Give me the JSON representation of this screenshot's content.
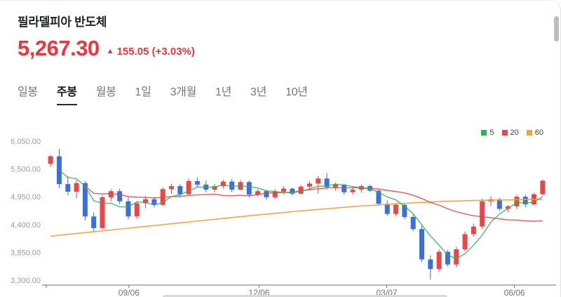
{
  "header": {
    "title": "필라델피아 반도체",
    "price": "5,267.30",
    "change_arrow": "▲",
    "change_text": "155.05 (+3.03%)"
  },
  "colors": {
    "price_up_accent": "#ef3341",
    "tab_active": "#121212",
    "tab_inactive": "#767676"
  },
  "tabs": {
    "items": [
      {
        "id": "daily",
        "label": "일봉",
        "active": false
      },
      {
        "id": "weekly",
        "label": "주봉",
        "active": true
      },
      {
        "id": "monthly",
        "label": "월봉",
        "active": false
      },
      {
        "id": "1day",
        "label": "1일",
        "active": false
      },
      {
        "id": "3months",
        "label": "3개월",
        "active": false
      },
      {
        "id": "1year",
        "label": "1년",
        "active": false
      },
      {
        "id": "3years",
        "label": "3년",
        "active": false
      },
      {
        "id": "10years",
        "label": "10년",
        "active": false
      }
    ]
  },
  "chart_data": {
    "type": "candlestick",
    "period": "weekly",
    "up_color": "#eb4547",
    "down_color": "#3b6fd9",
    "legend": [
      {
        "id": "ma5",
        "label": "5",
        "color": "#2faf5a"
      },
      {
        "id": "ma20",
        "label": "20",
        "color": "#eb4547"
      },
      {
        "id": "ma60",
        "label": "60",
        "color": "#f2a13a"
      }
    ],
    "y_axis": {
      "min": 3300,
      "max": 6050,
      "ticks": [
        {
          "label": "6,050.00",
          "value": 6050
        },
        {
          "label": "5,500.00",
          "value": 5500
        },
        {
          "label": "4,950.00",
          "value": 4950
        },
        {
          "label": "4,400.00",
          "value": 4400
        },
        {
          "label": "3,850.00",
          "value": 3850
        },
        {
          "label": "3,300.00",
          "value": 3300
        }
      ]
    },
    "x_axis": {
      "ticks": [
        {
          "label": "09/06",
          "t": 0.165
        },
        {
          "label": "12/06",
          "t": 0.425
        },
        {
          "label": "03/07",
          "t": 0.68
        },
        {
          "label": "06/06",
          "t": 0.935
        }
      ]
    },
    "candles": [
      [
        5600,
        5780,
        5540,
        5750
      ],
      [
        5750,
        5900,
        5120,
        5200
      ],
      [
        5200,
        5350,
        4980,
        5050
      ],
      [
        5050,
        5280,
        4920,
        5220
      ],
      [
        5220,
        5260,
        4480,
        4560
      ],
      [
        4560,
        4640,
        4260,
        4330
      ],
      [
        4330,
        4980,
        4300,
        4940
      ],
      [
        4940,
        5100,
        4860,
        5060
      ],
      [
        5060,
        5110,
        4800,
        4860
      ],
      [
        4860,
        4940,
        4500,
        4560
      ],
      [
        4560,
        4860,
        4510,
        4820
      ],
      [
        4820,
        4960,
        4720,
        4900
      ],
      [
        4900,
        4950,
        4740,
        4790
      ],
      [
        4790,
        5140,
        4770,
        5100
      ],
      [
        5100,
        5210,
        5010,
        5160
      ],
      [
        5160,
        5200,
        4940,
        5000
      ],
      [
        5000,
        5310,
        4980,
        5260
      ],
      [
        5260,
        5330,
        5140,
        5190
      ],
      [
        5190,
        5270,
        5040,
        5090
      ],
      [
        5090,
        5200,
        5040,
        5160
      ],
      [
        5160,
        5290,
        5110,
        5250
      ],
      [
        5250,
        5300,
        5040,
        5090
      ],
      [
        5090,
        5280,
        5070,
        5240
      ],
      [
        5240,
        5270,
        4940,
        4990
      ],
      [
        4990,
        5110,
        4950,
        5060
      ],
      [
        5060,
        5090,
        4890,
        4940
      ],
      [
        4940,
        5100,
        4910,
        5050
      ],
      [
        5050,
        5160,
        5000,
        5110
      ],
      [
        5110,
        5130,
        4970,
        5010
      ],
      [
        5010,
        5180,
        4990,
        5150
      ],
      [
        5150,
        5260,
        5090,
        5210
      ],
      [
        5210,
        5360,
        5010,
        5310
      ],
      [
        5310,
        5420,
        5090,
        5140
      ],
      [
        5140,
        5230,
        5070,
        5190
      ],
      [
        5190,
        5210,
        4990,
        5040
      ],
      [
        5040,
        5130,
        4990,
        5090
      ],
      [
        5090,
        5190,
        5030,
        5160
      ],
      [
        5160,
        5190,
        5040,
        5070
      ],
      [
        5070,
        5100,
        4770,
        4810
      ],
      [
        4810,
        4880,
        4570,
        4610
      ],
      [
        4610,
        4830,
        4570,
        4790
      ],
      [
        4790,
        4810,
        4510,
        4550
      ],
      [
        4550,
        4600,
        4270,
        4310
      ],
      [
        4310,
        4380,
        3660,
        3710
      ],
      [
        3710,
        3790,
        3310,
        3520
      ],
      [
        3520,
        3910,
        3460,
        3860
      ],
      [
        3860,
        3900,
        3570,
        3610
      ],
      [
        3610,
        3960,
        3550,
        3910
      ],
      [
        3910,
        4260,
        3870,
        4210
      ],
      [
        4210,
        4420,
        4160,
        4360
      ],
      [
        4360,
        4910,
        4310,
        4860
      ],
      [
        4860,
        4960,
        4760,
        4900
      ],
      [
        4900,
        4930,
        4670,
        4710
      ],
      [
        4710,
        4790,
        4640,
        4760
      ],
      [
        4760,
        4990,
        4700,
        4950
      ],
      [
        4950,
        4990,
        4740,
        4800
      ],
      [
        4800,
        5030,
        4780,
        5000
      ],
      [
        5000,
        5290,
        4980,
        5267
      ]
    ],
    "ma60_control_points": [
      {
        "t": 0.0,
        "v": 4170
      },
      {
        "t": 0.08,
        "v": 4250
      },
      {
        "t": 0.18,
        "v": 4350
      },
      {
        "t": 0.3,
        "v": 4470
      },
      {
        "t": 0.42,
        "v": 4590
      },
      {
        "t": 0.52,
        "v": 4680
      },
      {
        "t": 0.62,
        "v": 4760
      },
      {
        "t": 0.72,
        "v": 4820
      },
      {
        "t": 0.8,
        "v": 4860
      },
      {
        "t": 0.88,
        "v": 4880
      },
      {
        "t": 1.0,
        "v": 4900
      }
    ]
  }
}
